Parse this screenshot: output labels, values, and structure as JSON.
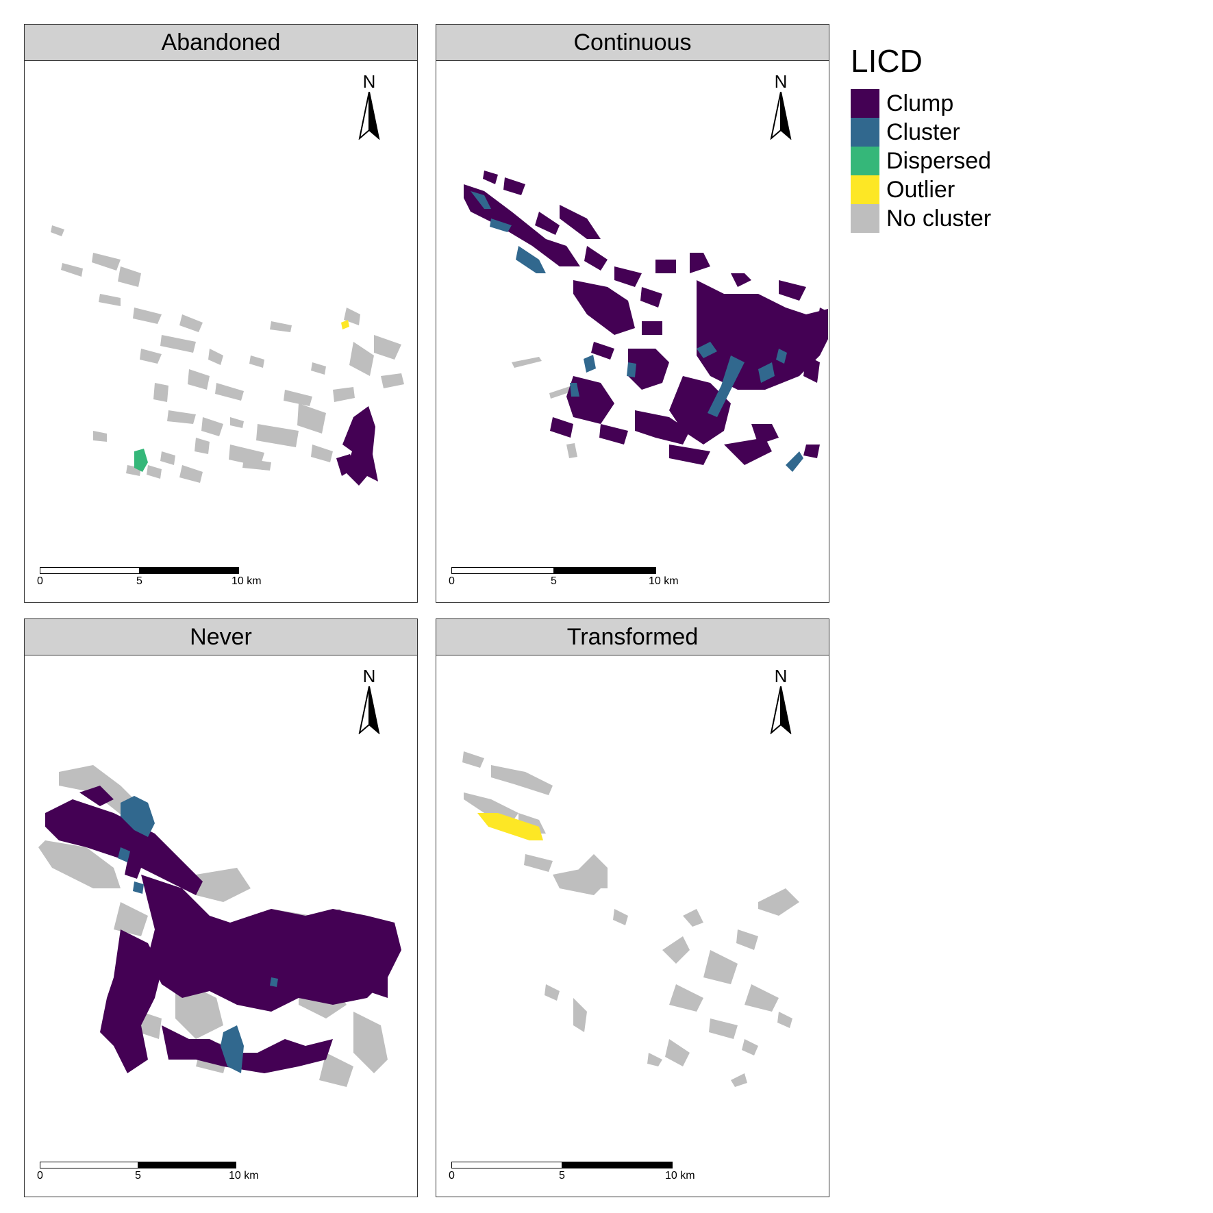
{
  "legend": {
    "title": "LICD",
    "items": [
      {
        "label": "Clump",
        "color": "#440154"
      },
      {
        "label": "Cluster",
        "color": "#31688e"
      },
      {
        "label": "Dispersed",
        "color": "#35b779"
      },
      {
        "label": "Outlier",
        "color": "#fde725"
      },
      {
        "label": "No cluster",
        "color": "#bebebe"
      }
    ]
  },
  "north_label": "N",
  "scale": {
    "ticks": [
      "0",
      "5",
      "10 km"
    ]
  },
  "panels": [
    {
      "title": "Abandoned"
    },
    {
      "title": "Continuous"
    },
    {
      "title": "Never"
    },
    {
      "title": "Transformed"
    }
  ]
}
